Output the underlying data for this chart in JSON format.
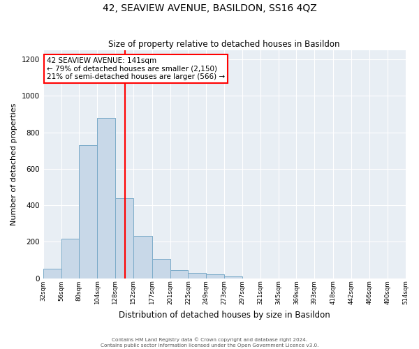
{
  "title": "42, SEAVIEW AVENUE, BASILDON, SS16 4QZ",
  "subtitle": "Size of property relative to detached houses in Basildon",
  "xlabel": "Distribution of detached houses by size in Basildon",
  "ylabel": "Number of detached properties",
  "bar_color": "#c8d8e8",
  "bar_edge_color": "#7aaac8",
  "bin_edges": [
    32,
    56,
    80,
    104,
    128,
    152,
    177,
    201,
    225,
    249,
    273,
    297,
    321,
    345,
    369,
    393,
    418,
    442,
    466,
    490,
    514
  ],
  "bin_labels": [
    "32sqm",
    "56sqm",
    "80sqm",
    "104sqm",
    "128sqm",
    "152sqm",
    "177sqm",
    "201sqm",
    "225sqm",
    "249sqm",
    "273sqm",
    "297sqm",
    "321sqm",
    "345sqm",
    "369sqm",
    "393sqm",
    "418sqm",
    "442sqm",
    "466sqm",
    "490sqm",
    "514sqm"
  ],
  "counts": [
    50,
    215,
    730,
    880,
    440,
    230,
    105,
    45,
    30,
    20,
    10,
    0,
    0,
    0,
    0,
    0,
    0,
    0,
    0,
    0
  ],
  "vline_x": 141,
  "vline_color": "red",
  "annotation_title": "42 SEAVIEW AVENUE: 141sqm",
  "annotation_line1": "← 79% of detached houses are smaller (2,150)",
  "annotation_line2": "21% of semi-detached houses are larger (566) →",
  "annotation_box_color": "white",
  "annotation_box_edge": "red",
  "ylim": [
    0,
    1250
  ],
  "yticks": [
    0,
    200,
    400,
    600,
    800,
    1000,
    1200
  ],
  "footer1": "Contains HM Land Registry data © Crown copyright and database right 2024.",
  "footer2": "Contains public sector information licensed under the Open Government Licence v3.0.",
  "background_color": "#ffffff",
  "plot_bg_color": "#e8eef4",
  "grid_color": "#ffffff"
}
